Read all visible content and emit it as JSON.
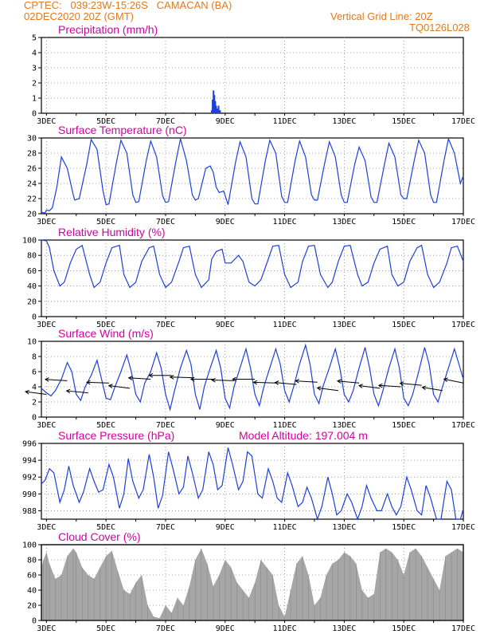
{
  "header": {
    "line1_left": "CPTEC:   039:23W-15:26S   CAMACAN (BA)",
    "line2_left": "02DEC2020 20Z (GMT)",
    "line2_right": "Vertical Grid Line: 20Z",
    "line3_right": "TQ0126L028"
  },
  "colors": {
    "header": "#e07a1f",
    "title": "#d400a0",
    "line": "#1f3fd8",
    "cloud": "#a6a6a6",
    "arrow": "#000000"
  },
  "chart_data": [
    {
      "type": "bar",
      "title": "Precipitation (mm/h)",
      "x_tick_labels": [
        "3DEC",
        "5DEC",
        "7DEC",
        "9DEC",
        "11DEC",
        "13DEC",
        "15DEC",
        "17DEC"
      ],
      "ylim": [
        0,
        5
      ],
      "y_ticks": [
        0,
        1,
        2,
        3,
        4,
        5
      ],
      "x_range_days": [
        2.83,
        17.0
      ],
      "series": [
        {
          "x": [
            8.55,
            8.58,
            8.61,
            8.64,
            8.67,
            8.7,
            8.73,
            8.78,
            8.83,
            8.9,
            9.0,
            2.9,
            4.0,
            6.8,
            7.6
          ],
          "values": [
            0.2,
            0.9,
            1.5,
            1.2,
            0.8,
            0.5,
            0.3,
            0.5,
            0.2,
            0.05,
            0.05,
            0.05,
            0.03,
            0.05,
            0.05
          ]
        }
      ]
    },
    {
      "type": "line",
      "title": "Surface Temperature (nC)",
      "x_tick_labels": [
        "3DEC",
        "5DEC",
        "7DEC",
        "9DEC",
        "11DEC",
        "13DEC",
        "15DEC",
        "17DEC"
      ],
      "ylim": [
        20,
        30
      ],
      "y_ticks": [
        20,
        22,
        24,
        26,
        28,
        30
      ],
      "x_range_days": [
        2.83,
        17.0
      ],
      "series": [
        {
          "x": [
            2.83,
            2.95,
            3.0,
            3.1,
            3.2,
            3.35,
            3.5,
            3.7,
            3.9,
            3.95,
            4.1,
            4.35,
            4.5,
            4.7,
            4.9,
            5.0,
            5.1,
            5.35,
            5.5,
            5.7,
            5.9,
            6.0,
            6.1,
            6.35,
            6.5,
            6.7,
            6.9,
            7.0,
            7.1,
            7.35,
            7.5,
            7.7,
            7.9,
            8.0,
            8.1,
            8.35,
            8.5,
            8.6,
            8.7,
            8.8,
            8.95,
            9.1,
            9.35,
            9.5,
            9.7,
            9.9,
            10.0,
            10.1,
            10.35,
            10.5,
            10.7,
            10.9,
            11.0,
            11.1,
            11.35,
            11.5,
            11.7,
            11.9,
            12.0,
            12.1,
            12.35,
            12.5,
            12.7,
            12.9,
            13.0,
            13.1,
            13.35,
            13.5,
            13.7,
            13.9,
            14.0,
            14.1,
            14.35,
            14.5,
            14.7,
            14.9,
            15.0,
            15.1,
            15.35,
            15.5,
            15.7,
            15.9,
            16.0,
            16.1,
            16.35,
            16.5,
            16.7,
            16.9,
            17.0
          ],
          "values": [
            20.2,
            20.1,
            20.5,
            20.4,
            20.8,
            23.5,
            27.5,
            26.0,
            22.5,
            21.8,
            22.0,
            26.5,
            29.8,
            28.5,
            23.0,
            21.2,
            21.3,
            26.8,
            29.7,
            28.0,
            22.5,
            21.5,
            21.6,
            27.0,
            29.6,
            27.5,
            22.4,
            21.5,
            21.6,
            27.0,
            29.9,
            27.0,
            22.5,
            21.8,
            22.0,
            26.0,
            26.3,
            25.5,
            23.5,
            22.8,
            23.0,
            21.2,
            26.8,
            29.5,
            27.5,
            22.0,
            21.3,
            21.3,
            27.0,
            29.7,
            28.0,
            22.3,
            21.5,
            21.5,
            27.0,
            29.6,
            27.5,
            22.5,
            21.8,
            21.8,
            26.8,
            29.5,
            27.5,
            22.5,
            21.5,
            21.5,
            26.5,
            28.8,
            27.0,
            22.2,
            21.5,
            21.5,
            26.5,
            29.3,
            27.5,
            22.5,
            22.0,
            22.0,
            27.0,
            29.7,
            28.0,
            22.5,
            21.5,
            21.5,
            27.0,
            29.9,
            28.0,
            24.0,
            25.0
          ]
        }
      ]
    },
    {
      "type": "line",
      "title": "Relative Humidity (%)",
      "x_tick_labels": [
        "3DEC",
        "5DEC",
        "7DEC",
        "9DEC",
        "11DEC",
        "13DEC",
        "15DEC",
        "17DEC"
      ],
      "ylim": [
        0,
        100
      ],
      "y_ticks": [
        0,
        20,
        40,
        60,
        80,
        100
      ],
      "x_range_days": [
        2.83,
        17.0
      ],
      "series": [
        {
          "x": [
            2.83,
            3.0,
            3.1,
            3.25,
            3.45,
            3.6,
            3.8,
            4.0,
            4.2,
            4.45,
            4.6,
            4.8,
            5.0,
            5.2,
            5.45,
            5.6,
            5.8,
            6.0,
            6.2,
            6.45,
            6.6,
            6.8,
            7.0,
            7.2,
            7.45,
            7.6,
            7.8,
            8.0,
            8.2,
            8.45,
            8.55,
            8.7,
            8.9,
            9.0,
            9.2,
            9.45,
            9.6,
            9.8,
            10.0,
            10.2,
            10.45,
            10.6,
            10.8,
            11.0,
            11.2,
            11.45,
            11.6,
            11.8,
            12.0,
            12.2,
            12.45,
            12.6,
            12.8,
            13.0,
            13.2,
            13.45,
            13.6,
            13.8,
            14.0,
            14.2,
            14.45,
            14.6,
            14.8,
            15.0,
            15.2,
            15.45,
            15.6,
            15.8,
            16.0,
            16.2,
            16.45,
            16.6,
            16.8,
            17.0
          ],
          "values": [
            100,
            99,
            90,
            60,
            40,
            45,
            70,
            88,
            93,
            55,
            38,
            45,
            70,
            90,
            93,
            55,
            38,
            45,
            72,
            90,
            92,
            55,
            38,
            45,
            72,
            90,
            92,
            55,
            38,
            48,
            75,
            85,
            88,
            70,
            70,
            80,
            72,
            45,
            40,
            48,
            75,
            92,
            93,
            55,
            38,
            45,
            72,
            92,
            93,
            55,
            38,
            45,
            72,
            92,
            93,
            55,
            40,
            45,
            70,
            88,
            92,
            55,
            40,
            45,
            72,
            90,
            93,
            55,
            38,
            45,
            70,
            90,
            92,
            72
          ]
        }
      ]
    },
    {
      "type": "line",
      "title": "Surface Wind (m/s)",
      "x_tick_labels": [
        "3DEC",
        "5DEC",
        "7DEC",
        "9DEC",
        "11DEC",
        "13DEC",
        "15DEC",
        "17DEC"
      ],
      "ylim": [
        0,
        10
      ],
      "y_ticks": [
        0,
        2,
        4,
        6,
        8,
        10
      ],
      "x_range_days": [
        2.83,
        17.0
      ],
      "series": [
        {
          "x": [
            2.83,
            3.0,
            3.15,
            3.3,
            3.5,
            3.7,
            3.85,
            4.0,
            4.15,
            4.3,
            4.5,
            4.7,
            4.85,
            5.0,
            5.15,
            5.3,
            5.5,
            5.7,
            5.85,
            6.0,
            6.15,
            6.3,
            6.5,
            6.7,
            6.85,
            7.0,
            7.15,
            7.3,
            7.5,
            7.7,
            7.85,
            8.0,
            8.15,
            8.3,
            8.5,
            8.7,
            8.85,
            9.0,
            9.15,
            9.3,
            9.5,
            9.7,
            9.85,
            10.0,
            10.15,
            10.3,
            10.5,
            10.7,
            10.85,
            11.0,
            11.15,
            11.3,
            11.5,
            11.7,
            11.85,
            12.0,
            12.15,
            12.3,
            12.5,
            12.7,
            12.85,
            13.0,
            13.15,
            13.3,
            13.5,
            13.7,
            13.85,
            14.0,
            14.15,
            14.3,
            14.5,
            14.7,
            14.85,
            15.0,
            15.15,
            15.3,
            15.5,
            15.7,
            15.85,
            16.0,
            16.15,
            16.3,
            16.5,
            16.7,
            16.85,
            17.0
          ],
          "values": [
            3.8,
            3.2,
            2.8,
            3.5,
            5.0,
            7.2,
            6.0,
            3.0,
            2.2,
            4.0,
            5.5,
            7.5,
            5.0,
            2.5,
            2.3,
            4.0,
            6.0,
            8.2,
            6.0,
            3.0,
            2.0,
            4.5,
            6.0,
            8.5,
            6.5,
            3.0,
            1.0,
            3.5,
            6.5,
            8.8,
            7.0,
            3.0,
            1.0,
            4.0,
            6.5,
            8.8,
            6.5,
            2.5,
            1.2,
            4.0,
            6.5,
            9.0,
            6.5,
            3.0,
            1.5,
            4.0,
            6.5,
            9.0,
            7.0,
            3.5,
            2.0,
            4.0,
            7.0,
            9.5,
            7.0,
            3.0,
            1.8,
            4.2,
            6.5,
            9.0,
            6.5,
            3.0,
            2.0,
            3.5,
            6.5,
            9.2,
            6.5,
            3.0,
            1.5,
            3.5,
            6.5,
            9.0,
            6.5,
            2.5,
            1.5,
            3.0,
            6.0,
            9.2,
            7.0,
            3.0,
            2.0,
            4.0,
            6.5,
            9.0,
            7.0,
            5.0
          ]
        }
      ],
      "wind_barbs": {
        "x": [
          3.0,
          3.7,
          4.4,
          5.1,
          5.8,
          6.5,
          7.2,
          7.9,
          8.6,
          9.3,
          10.0,
          10.7,
          11.4,
          12.1,
          12.8,
          13.5,
          14.2,
          14.9,
          15.6,
          16.3,
          17.0
        ],
        "speed": [
          3.0,
          4.8,
          3.2,
          4.5,
          3.8,
          5.0,
          5.5,
          5.2,
          5.0,
          4.8,
          5.0,
          4.5,
          4.3,
          4.6,
          3.5,
          4.5,
          3.8,
          4.0,
          4.2,
          3.5,
          4.5
        ],
        "dir_deg": [
          200,
          190,
          195,
          185,
          200,
          190,
          180,
          185,
          180,
          185,
          180,
          185,
          195,
          190,
          200,
          195,
          200,
          190,
          195,
          205,
          210
        ]
      }
    },
    {
      "type": "line",
      "title": "Surface Pressure (hPa)",
      "annotation": "Model Altitude: 197.004 m",
      "x_tick_labels": [
        "3DEC",
        "5DEC",
        "7DEC",
        "9DEC",
        "11DEC",
        "13DEC",
        "15DEC",
        "17DEC"
      ],
      "ylim": [
        987,
        996
      ],
      "y_ticks": [
        988,
        990,
        992,
        994,
        996
      ],
      "x_range_days": [
        2.83,
        17.0
      ],
      "series": [
        {
          "x": [
            2.83,
            2.95,
            3.1,
            3.25,
            3.45,
            3.6,
            3.75,
            3.9,
            4.1,
            4.25,
            4.45,
            4.6,
            4.75,
            4.9,
            5.1,
            5.25,
            5.45,
            5.6,
            5.75,
            5.9,
            6.1,
            6.25,
            6.45,
            6.6,
            6.75,
            6.9,
            7.1,
            7.25,
            7.45,
            7.6,
            7.75,
            7.9,
            8.1,
            8.25,
            8.45,
            8.6,
            8.75,
            8.9,
            9.1,
            9.25,
            9.45,
            9.6,
            9.75,
            9.9,
            10.1,
            10.25,
            10.45,
            10.6,
            10.75,
            10.9,
            11.1,
            11.25,
            11.45,
            11.6,
            11.75,
            11.9,
            12.1,
            12.25,
            12.45,
            12.6,
            12.75,
            12.9,
            13.1,
            13.25,
            13.45,
            13.6,
            13.75,
            13.9,
            14.1,
            14.25,
            14.45,
            14.6,
            14.75,
            14.9,
            15.1,
            15.25,
            15.45,
            15.6,
            15.75,
            15.9,
            16.1,
            16.25,
            16.45,
            16.6,
            16.75,
            16.9,
            17.0
          ],
          "values": [
            991.2,
            991.6,
            993.0,
            992.5,
            989.0,
            990.5,
            993.3,
            991.0,
            989.0,
            990.3,
            993.0,
            991.5,
            990.2,
            990.5,
            993.5,
            992.0,
            988.3,
            990.0,
            994.2,
            991.5,
            989.5,
            990.5,
            994.7,
            992.0,
            988.3,
            989.8,
            995.0,
            993.0,
            990.0,
            990.8,
            994.5,
            992.5,
            989.5,
            990.5,
            995.0,
            993.5,
            990.5,
            991.0,
            995.5,
            993.5,
            990.5,
            991.5,
            995.0,
            994.5,
            990.0,
            989.5,
            993.0,
            991.5,
            989.5,
            989.0,
            992.5,
            991.0,
            988.5,
            989.0,
            990.8,
            989.5,
            986.5,
            988.5,
            992.0,
            990.0,
            987.5,
            988.0,
            990.0,
            989.0,
            986.0,
            988.5,
            991.0,
            989.5,
            988.0,
            988.0,
            990.0,
            988.5,
            987.5,
            988.5,
            992.0,
            990.5,
            988.0,
            987.5,
            991.0,
            989.5,
            986.5,
            987.0,
            991.5,
            990.5,
            987.0,
            986.5,
            988.2
          ]
        }
      ]
    },
    {
      "type": "area",
      "title": "Cloud Cover (%)",
      "x_tick_labels": [
        "3DEC",
        "5DEC",
        "7DEC",
        "9DEC",
        "11DEC",
        "13DEC",
        "15DEC",
        "17DEC"
      ],
      "ylim": [
        0,
        100
      ],
      "y_ticks": [
        0,
        20,
        40,
        60,
        80,
        100
      ],
      "x_range_days": [
        2.83,
        17.0
      ],
      "series": [
        {
          "x": [
            2.83,
            2.9,
            3.0,
            3.1,
            3.3,
            3.5,
            3.7,
            3.9,
            4.0,
            4.2,
            4.4,
            4.6,
            4.8,
            5.0,
            5.2,
            5.4,
            5.6,
            5.8,
            6.0,
            6.2,
            6.4,
            6.6,
            6.8,
            7.0,
            7.2,
            7.4,
            7.6,
            7.8,
            8.0,
            8.2,
            8.4,
            8.6,
            8.8,
            9.0,
            9.2,
            9.4,
            9.6,
            9.8,
            10.0,
            10.2,
            10.4,
            10.6,
            10.8,
            11.0,
            11.2,
            11.4,
            11.6,
            11.8,
            12.0,
            12.2,
            12.4,
            12.6,
            12.8,
            13.0,
            13.2,
            13.4,
            13.6,
            13.8,
            14.0,
            14.2,
            14.4,
            14.6,
            14.8,
            15.0,
            15.2,
            15.4,
            15.6,
            15.8,
            16.0,
            16.2,
            16.4,
            16.6,
            16.8,
            17.0
          ],
          "values": [
            70,
            80,
            90,
            75,
            55,
            60,
            85,
            95,
            90,
            70,
            60,
            55,
            70,
            85,
            92,
            65,
            40,
            35,
            50,
            60,
            20,
            5,
            3,
            20,
            10,
            30,
            20,
            45,
            80,
            95,
            75,
            45,
            60,
            80,
            70,
            50,
            40,
            30,
            50,
            80,
            70,
            60,
            20,
            5,
            40,
            75,
            85,
            60,
            20,
            30,
            60,
            75,
            80,
            90,
            85,
            75,
            40,
            30,
            35,
            90,
            95,
            90,
            80,
            60,
            90,
            95,
            85,
            70,
            55,
            40,
            85,
            90,
            95,
            90
          ]
        }
      ]
    }
  ]
}
